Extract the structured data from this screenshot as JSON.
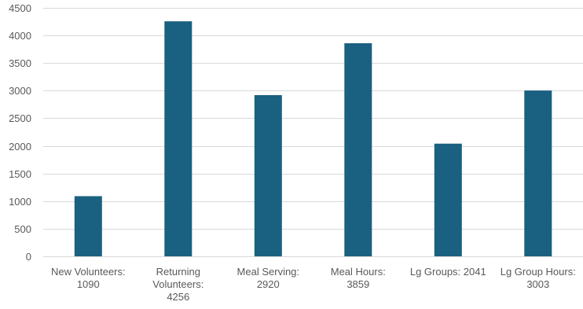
{
  "chart_data": {
    "type": "bar",
    "title": "",
    "xlabel": "",
    "ylabel": "",
    "categories": [
      [
        "New Volunteers:",
        "1090"
      ],
      [
        "Returning",
        "Volunteers:",
        "4256"
      ],
      [
        "Meal Serving:",
        "2920"
      ],
      [
        "Meal Hours:",
        "3859"
      ],
      [
        "Lg Groups: 2041"
      ],
      [
        "Lg Group Hours:",
        "3003"
      ]
    ],
    "values": [
      1090,
      4256,
      2920,
      3859,
      2041,
      3003
    ],
    "ylim": [
      0,
      4500
    ],
    "yticks": [
      0,
      500,
      1000,
      1500,
      2000,
      2500,
      3000,
      3500,
      4000,
      4500
    ],
    "grid": true,
    "legend": "none",
    "bar_color": "#1a6080"
  }
}
